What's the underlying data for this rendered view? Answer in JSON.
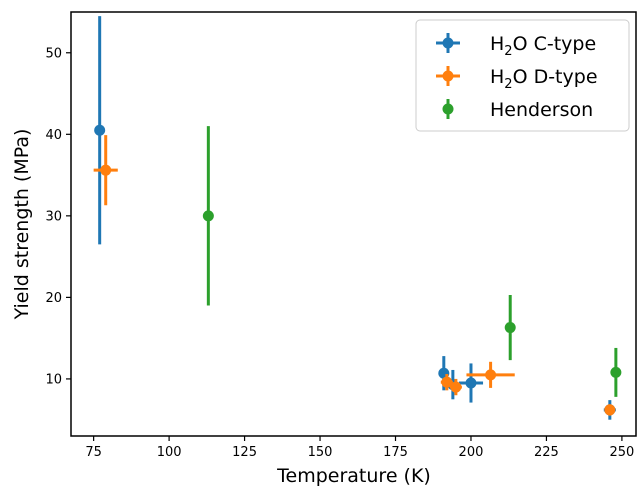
{
  "chart_data": {
    "type": "scatter",
    "title": "",
    "xlabel": "Temperature (K)",
    "ylabel": "Yield strength (MPa)",
    "xlim": [
      67.5,
      255
    ],
    "ylim": [
      3,
      55
    ],
    "xticks": [
      75,
      100,
      125,
      150,
      175,
      200,
      225,
      250
    ],
    "yticks": [
      10,
      20,
      30,
      40,
      50
    ],
    "grid": false,
    "legend": {
      "position": "top-right"
    },
    "series": [
      {
        "name": "H2O C-type",
        "name_parts": [
          "H",
          "2",
          "O C-type"
        ],
        "color": "#1f77b4",
        "points": [
          {
            "x": 77,
            "y": 40.5,
            "xerr": 0,
            "yerr": 14
          },
          {
            "x": 191,
            "y": 10.7,
            "xerr": 0,
            "yerr": 2.1
          },
          {
            "x": 194,
            "y": 9.3,
            "xerr": 0,
            "yerr": 1.8
          },
          {
            "x": 200,
            "y": 9.5,
            "xerr": 4,
            "yerr": 2.4
          },
          {
            "x": 246,
            "y": 6.2,
            "xerr": 2,
            "yerr": 1.2
          }
        ]
      },
      {
        "name": "H2O D-type",
        "name_parts": [
          "H",
          "2",
          "O D-type"
        ],
        "color": "#ff7f0e",
        "points": [
          {
            "x": 79,
            "y": 35.6,
            "xerr": 4,
            "yerr": 4.3
          },
          {
            "x": 192,
            "y": 9.6,
            "xerr": 2,
            "yerr": 1.0
          },
          {
            "x": 195,
            "y": 9.0,
            "xerr": 2,
            "yerr": 1.0
          },
          {
            "x": 206.5,
            "y": 10.5,
            "xerr": 8,
            "yerr": 1.6
          },
          {
            "x": 246,
            "y": 6.2,
            "xerr": 0,
            "yerr": 0.7
          }
        ]
      },
      {
        "name": "Henderson",
        "name_parts": [
          "Henderson",
          "",
          ""
        ],
        "color": "#2ca02c",
        "points": [
          {
            "x": 113,
            "y": 30,
            "xerr": 0,
            "yerr": 11
          },
          {
            "x": 213,
            "y": 16.3,
            "xerr": 0,
            "yerr": 4
          },
          {
            "x": 248,
            "y": 10.8,
            "xerr": 0,
            "yerr": 3
          }
        ]
      }
    ]
  }
}
